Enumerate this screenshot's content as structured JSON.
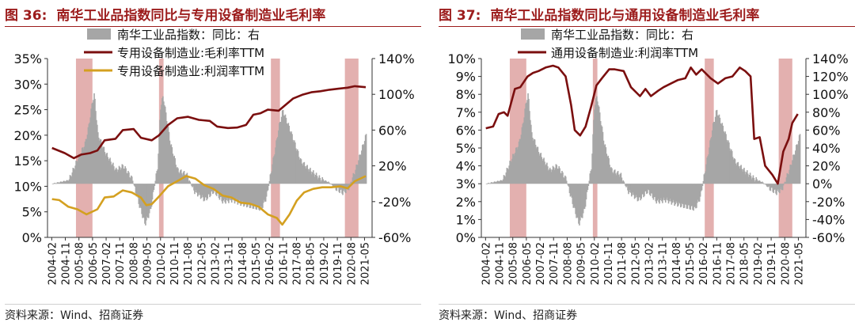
{
  "charts": [
    {
      "fig_no": "图 36:",
      "title": "南华工业品指数同比与专用设备制造业毛利率",
      "source": "资料来源：Wind、招商证券",
      "colors": {
        "bar": "#a6a6a6",
        "shade": "#c0504d",
        "line1": "#7b0f0f",
        "line2": "#d4a020"
      },
      "chart_data": {
        "type": "line",
        "x_ticks": [
          "2004-02",
          "2004-11",
          "2005-08",
          "2006-05",
          "2007-02",
          "2007-11",
          "2008-08",
          "2009-05",
          "2010-02",
          "2010-11",
          "2011-08",
          "2012-05",
          "2013-02",
          "2013-11",
          "2014-08",
          "2015-05",
          "2016-02",
          "2016-11",
          "2017-08",
          "2018-05",
          "2019-02",
          "2019-11",
          "2020-08",
          "2021-05"
        ],
        "left_axis": {
          "range": [
            0,
            35
          ],
          "ticks": [
            "0%",
            "5%",
            "10%",
            "15%",
            "20%",
            "25%",
            "30%",
            "35%"
          ]
        },
        "right_axis": {
          "range": [
            -60,
            140
          ],
          "ticks": [
            "-60%",
            "-20%",
            "20%",
            "60%",
            "100%",
            "140%"
          ]
        },
        "shaded_periods": [
          [
            2005.42,
            2006.33
          ],
          [
            2010.0,
            2010.25
          ],
          [
            2016.17,
            2016.67
          ],
          [
            2020.25,
            2021.0
          ]
        ],
        "legend": [
          {
            "label": "南华工业品指数：同比：右",
            "kind": "bar"
          },
          {
            "label": "专用设备制造业:毛利率TTM",
            "kind": "line1"
          },
          {
            "label": "专用设备制造业:利润率TTM",
            "kind": "line2"
          }
        ],
        "bars": [
          [
            2004.1,
            0
          ],
          [
            2005.0,
            4
          ],
          [
            2005.5,
            28
          ],
          [
            2005.9,
            45
          ],
          [
            2006.1,
            65
          ],
          [
            2006.3,
            92
          ],
          [
            2006.4,
            100
          ],
          [
            2006.6,
            55
          ],
          [
            2007.0,
            35
          ],
          [
            2007.6,
            15
          ],
          [
            2008.0,
            20
          ],
          [
            2008.5,
            5
          ],
          [
            2008.9,
            -25
          ],
          [
            2009.2,
            -45
          ],
          [
            2009.5,
            -30
          ],
          [
            2009.9,
            20
          ],
          [
            2010.05,
            85
          ],
          [
            2010.2,
            98
          ],
          [
            2010.6,
            45
          ],
          [
            2011.0,
            15
          ],
          [
            2011.5,
            10
          ],
          [
            2011.9,
            -8
          ],
          [
            2012.5,
            -18
          ],
          [
            2013.0,
            -8
          ],
          [
            2013.5,
            -20
          ],
          [
            2014.0,
            -18
          ],
          [
            2014.5,
            -22
          ],
          [
            2015.0,
            -25
          ],
          [
            2015.6,
            -28
          ],
          [
            2015.9,
            -15
          ],
          [
            2016.3,
            30
          ],
          [
            2016.6,
            65
          ],
          [
            2016.8,
            82
          ],
          [
            2017.2,
            60
          ],
          [
            2017.8,
            25
          ],
          [
            2018.3,
            15
          ],
          [
            2018.9,
            5
          ],
          [
            2019.3,
            2
          ],
          [
            2019.7,
            -5
          ],
          [
            2020.1,
            -10
          ],
          [
            2020.4,
            -6
          ],
          [
            2020.8,
            15
          ],
          [
            2021.1,
            35
          ],
          [
            2021.4,
            55
          ]
        ],
        "series": [
          {
            "axis": "left",
            "points": [
              [
                2004.1,
                17.5
              ],
              [
                2004.8,
                16.5
              ],
              [
                2005.3,
                15.5
              ],
              [
                2005.7,
                16.2
              ],
              [
                2006.2,
                16.5
              ],
              [
                2006.6,
                17.0
              ],
              [
                2007.0,
                19.0
              ],
              [
                2007.6,
                19.3
              ],
              [
                2008.0,
                21.0
              ],
              [
                2008.6,
                21.2
              ],
              [
                2009.0,
                19.5
              ],
              [
                2009.6,
                19.0
              ],
              [
                2010.0,
                20.0
              ],
              [
                2010.5,
                22.0
              ],
              [
                2011.0,
                23.3
              ],
              [
                2011.6,
                23.6
              ],
              [
                2012.2,
                23.0
              ],
              [
                2012.8,
                22.8
              ],
              [
                2013.2,
                21.7
              ],
              [
                2013.8,
                21.4
              ],
              [
                2014.3,
                21.5
              ],
              [
                2014.8,
                22.0
              ],
              [
                2015.2,
                24.0
              ],
              [
                2015.6,
                24.3
              ],
              [
                2016.0,
                25.0
              ],
              [
                2016.6,
                24.8
              ],
              [
                2017.0,
                26.0
              ],
              [
                2017.4,
                27.2
              ],
              [
                2017.9,
                27.9
              ],
              [
                2018.4,
                28.4
              ],
              [
                2018.9,
                28.6
              ],
              [
                2019.4,
                28.9
              ],
              [
                2019.9,
                29.1
              ],
              [
                2020.4,
                29.3
              ],
              [
                2020.8,
                29.6
              ],
              [
                2021.4,
                29.4
              ]
            ]
          },
          {
            "axis": "left",
            "points": [
              [
                2004.1,
                7.5
              ],
              [
                2004.5,
                7.3
              ],
              [
                2005.0,
                6.0
              ],
              [
                2005.5,
                5.5
              ],
              [
                2006.0,
                4.5
              ],
              [
                2006.6,
                5.5
              ],
              [
                2007.0,
                7.8
              ],
              [
                2007.5,
                8.0
              ],
              [
                2008.0,
                9.2
              ],
              [
                2008.5,
                8.8
              ],
              [
                2009.0,
                7.8
              ],
              [
                2009.3,
                6.3
              ],
              [
                2009.6,
                6.5
              ],
              [
                2010.0,
                8.0
              ],
              [
                2010.5,
                10.0
              ],
              [
                2011.0,
                11.0
              ],
              [
                2011.5,
                12.0
              ],
              [
                2012.0,
                11.5
              ],
              [
                2012.5,
                10.2
              ],
              [
                2013.0,
                9.5
              ],
              [
                2013.5,
                8.2
              ],
              [
                2014.0,
                7.8
              ],
              [
                2014.5,
                6.8
              ],
              [
                2015.0,
                6.6
              ],
              [
                2015.5,
                6.0
              ],
              [
                2016.0,
                4.5
              ],
              [
                2016.5,
                3.8
              ],
              [
                2016.8,
                2.5
              ],
              [
                2017.2,
                4.5
              ],
              [
                2017.6,
                7.2
              ],
              [
                2018.0,
                8.8
              ],
              [
                2018.5,
                9.5
              ],
              [
                2019.0,
                9.8
              ],
              [
                2019.5,
                9.8
              ],
              [
                2020.0,
                10.0
              ],
              [
                2020.4,
                9.6
              ],
              [
                2020.8,
                11.0
              ],
              [
                2021.4,
                12.0
              ]
            ]
          }
        ]
      }
    },
    {
      "fig_no": "图 37:",
      "title": "南华工业品指数同比与通用设备制造业毛利率",
      "source": "资料来源：Wind、招商证券",
      "colors": {
        "bar": "#a6a6a6",
        "shade": "#c0504d",
        "line1": "#7b0f0f"
      },
      "chart_data": {
        "type": "line",
        "x_ticks": [
          "2004-02",
          "2004-11",
          "2005-08",
          "2006-05",
          "2007-02",
          "2007-11",
          "2008-08",
          "2009-05",
          "2010-02",
          "2010-11",
          "2011-08",
          "2012-05",
          "2013-02",
          "2013-11",
          "2014-08",
          "2015-05",
          "2016-02",
          "2016-11",
          "2017-08",
          "2018-05",
          "2019-02",
          "2019-11",
          "2020-08",
          "2021-05"
        ],
        "left_axis": {
          "range": [
            0,
            10
          ],
          "ticks": [
            "0%",
            "1%",
            "2%",
            "3%",
            "4%",
            "5%",
            "6%",
            "7%",
            "8%",
            "9%",
            "10%"
          ]
        },
        "right_axis": {
          "range": [
            -60,
            140
          ],
          "ticks": [
            "-60%",
            "-40%",
            "-20%",
            "0%",
            "20%",
            "40%",
            "60%",
            "80%",
            "100%",
            "120%",
            "140%"
          ]
        },
        "shaded_periods": [
          [
            2005.42,
            2006.33
          ],
          [
            2010.0,
            2010.25
          ],
          [
            2016.17,
            2016.67
          ],
          [
            2020.25,
            2021.0
          ]
        ],
        "legend": [
          {
            "label": "南华工业品指数：同比：右",
            "kind": "bar"
          },
          {
            "label": "通用设备制造业:利润率TTM",
            "kind": "line1"
          }
        ],
        "bars": [
          [
            2004.1,
            0
          ],
          [
            2005.0,
            4
          ],
          [
            2005.5,
            28
          ],
          [
            2005.9,
            45
          ],
          [
            2006.1,
            65
          ],
          [
            2006.3,
            92
          ],
          [
            2006.4,
            100
          ],
          [
            2006.6,
            55
          ],
          [
            2007.0,
            35
          ],
          [
            2007.6,
            15
          ],
          [
            2008.0,
            20
          ],
          [
            2008.5,
            5
          ],
          [
            2008.9,
            -25
          ],
          [
            2009.2,
            -45
          ],
          [
            2009.5,
            -30
          ],
          [
            2009.9,
            20
          ],
          [
            2010.05,
            85
          ],
          [
            2010.2,
            98
          ],
          [
            2010.6,
            45
          ],
          [
            2011.0,
            15
          ],
          [
            2011.5,
            10
          ],
          [
            2011.9,
            -8
          ],
          [
            2012.5,
            -18
          ],
          [
            2013.0,
            -8
          ],
          [
            2013.5,
            -20
          ],
          [
            2014.0,
            -18
          ],
          [
            2014.5,
            -22
          ],
          [
            2015.0,
            -25
          ],
          [
            2015.6,
            -28
          ],
          [
            2015.9,
            -15
          ],
          [
            2016.3,
            30
          ],
          [
            2016.6,
            65
          ],
          [
            2016.8,
            82
          ],
          [
            2017.2,
            60
          ],
          [
            2017.8,
            25
          ],
          [
            2018.3,
            15
          ],
          [
            2018.9,
            5
          ],
          [
            2019.3,
            2
          ],
          [
            2019.7,
            -5
          ],
          [
            2020.1,
            -10
          ],
          [
            2020.4,
            -6
          ],
          [
            2020.8,
            15
          ],
          [
            2021.1,
            35
          ],
          [
            2021.4,
            55
          ]
        ],
        "series": [
          {
            "axis": "left",
            "points": [
              [
                2004.1,
                6.1
              ],
              [
                2004.5,
                6.2
              ],
              [
                2004.8,
                6.9
              ],
              [
                2005.1,
                7.0
              ],
              [
                2005.3,
                6.8
              ],
              [
                2005.7,
                8.3
              ],
              [
                2006.0,
                8.4
              ],
              [
                2006.4,
                9.0
              ],
              [
                2006.7,
                9.2
              ],
              [
                2007.0,
                9.3
              ],
              [
                2007.4,
                9.5
              ],
              [
                2007.8,
                9.6
              ],
              [
                2008.1,
                9.5
              ],
              [
                2008.5,
                9.0
              ],
              [
                2008.8,
                7.4
              ],
              [
                2009.0,
                6.0
              ],
              [
                2009.3,
                5.7
              ],
              [
                2009.6,
                6.2
              ],
              [
                2009.9,
                7.3
              ],
              [
                2010.2,
                8.5
              ],
              [
                2010.5,
                8.9
              ],
              [
                2010.9,
                9.4
              ],
              [
                2011.2,
                9.4
              ],
              [
                2011.7,
                9.3
              ],
              [
                2012.1,
                8.4
              ],
              [
                2012.6,
                7.9
              ],
              [
                2012.9,
                8.3
              ],
              [
                2013.2,
                7.9
              ],
              [
                2013.6,
                8.2
              ],
              [
                2013.9,
                8.4
              ],
              [
                2014.3,
                8.6
              ],
              [
                2014.7,
                8.8
              ],
              [
                2015.1,
                8.9
              ],
              [
                2015.4,
                9.5
              ],
              [
                2015.7,
                9.1
              ],
              [
                2016.0,
                9.4
              ],
              [
                2016.5,
                8.9
              ],
              [
                2016.9,
                8.6
              ],
              [
                2017.3,
                8.9
              ],
              [
                2017.7,
                9.0
              ],
              [
                2018.1,
                9.5
              ],
              [
                2018.4,
                9.3
              ],
              [
                2018.7,
                9.0
              ],
              [
                2018.9,
                5.5
              ],
              [
                2019.2,
                5.6
              ],
              [
                2019.5,
                4.0
              ],
              [
                2019.9,
                3.5
              ],
              [
                2020.2,
                3.0
              ],
              [
                2020.5,
                4.8
              ],
              [
                2020.8,
                5.5
              ],
              [
                2021.0,
                6.4
              ],
              [
                2021.3,
                6.9
              ]
            ]
          }
        ]
      }
    }
  ]
}
